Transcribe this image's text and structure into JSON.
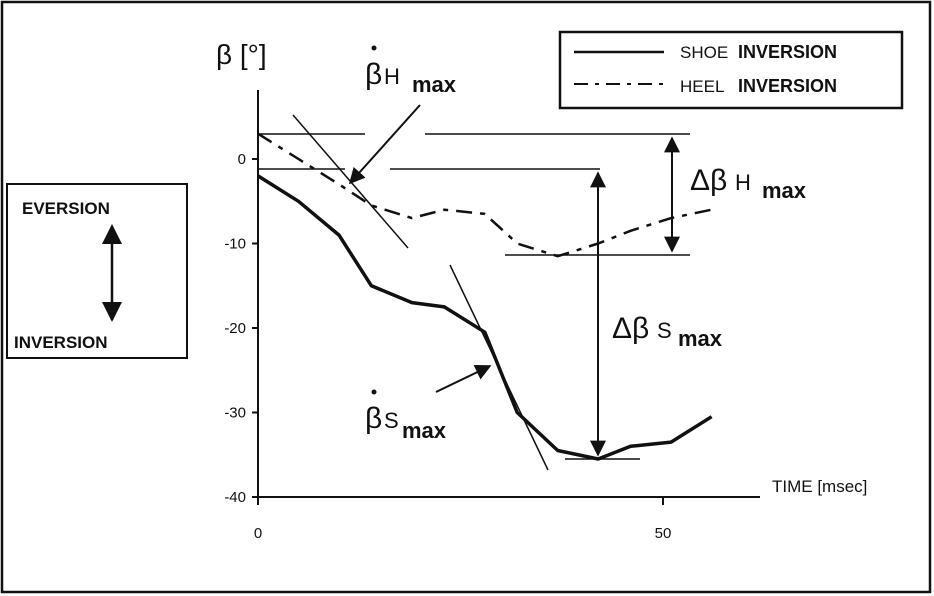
{
  "chart_data": {
    "type": "line",
    "ylabel": "β [°]",
    "xlabel": "TIME [msec]",
    "xlim": [
      0,
      60
    ],
    "ylim": [
      -40,
      8
    ],
    "xticks": [
      "0",
      "50"
    ],
    "xtick_values": [
      0,
      50
    ],
    "yticks": [
      "0",
      "-10",
      "-20",
      "-30",
      "-40"
    ],
    "ytick_values": [
      0,
      -10,
      -20,
      -30,
      -40
    ],
    "grid": false,
    "legend_position": "top-right",
    "series": [
      {
        "name": "SHOE INVERSION",
        "legend_light": "SHOE",
        "legend_bold": "INVERSION",
        "style": "solid",
        "x": [
          0,
          5,
          10,
          14,
          19,
          23,
          28,
          32,
          37,
          42,
          46,
          51,
          56
        ],
        "y": [
          -2,
          -5,
          -9,
          -15,
          -17,
          -17.5,
          -20.5,
          -30,
          -34.5,
          -35.5,
          -34,
          -33.5,
          -30.5
        ]
      },
      {
        "name": "HEEL INVERSION",
        "legend_light": "HEEL",
        "legend_bold": "INVERSION",
        "style": "dashed",
        "x": [
          0,
          5,
          10,
          14,
          19,
          23,
          28,
          32,
          37,
          42,
          46,
          51,
          56
        ],
        "y": [
          3,
          0,
          -3,
          -5.5,
          -7,
          -6,
          -6.5,
          -10,
          -11.5,
          -10,
          -8.5,
          -7,
          -6
        ]
      }
    ],
    "annotations": {
      "heel_rate_symbol": "β",
      "heel_rate_sub": "H",
      "heel_rate_max": "max",
      "shoe_rate_symbol": "β",
      "shoe_rate_sub": "S",
      "shoe_rate_max": "max",
      "delta_heel_symbol": "Δβ",
      "delta_heel_sub": "H",
      "delta_heel_max": "max",
      "delta_shoe_symbol": "Δβ",
      "delta_shoe_sub": "S",
      "delta_shoe_max": "max"
    },
    "side_box": {
      "top": "EVERSION",
      "bottom": "INVERSION"
    }
  }
}
